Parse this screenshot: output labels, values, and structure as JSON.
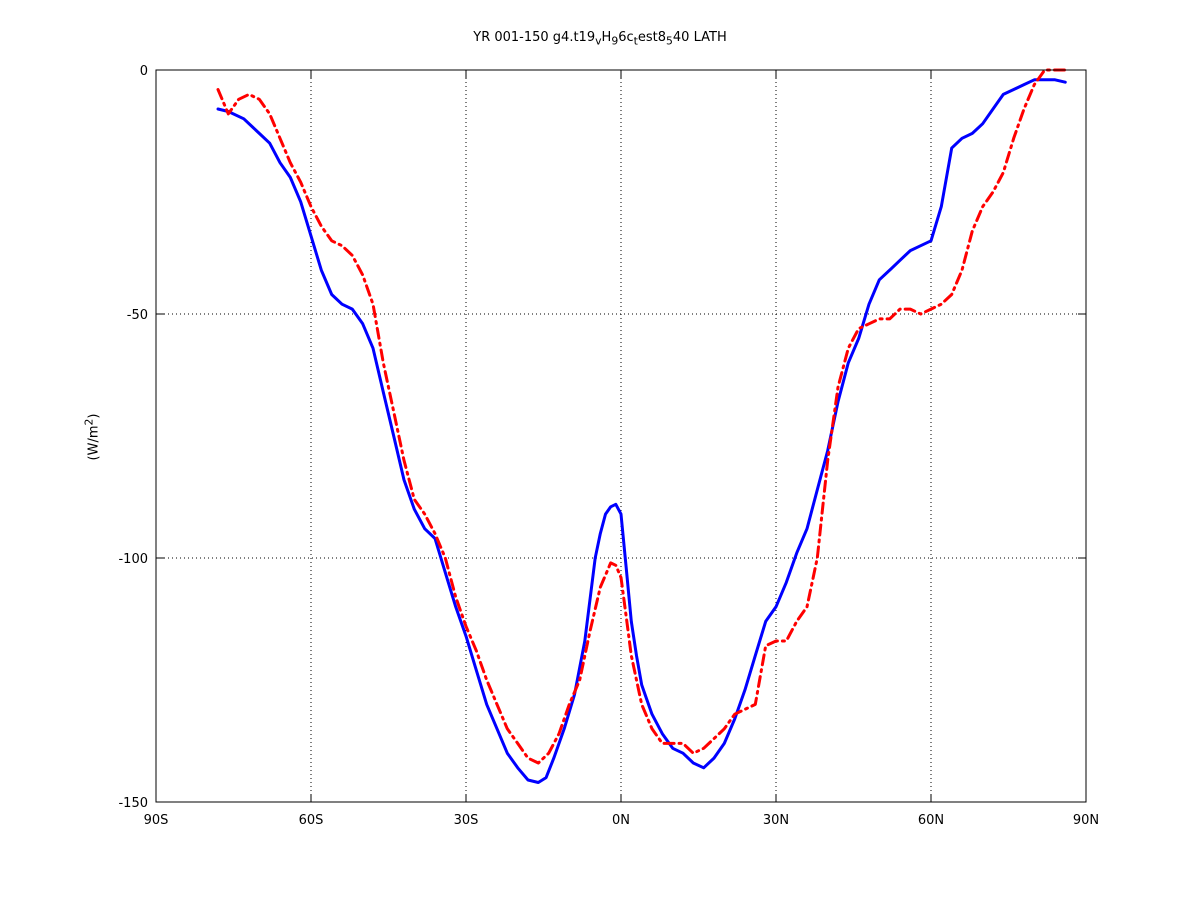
{
  "chart_data": {
    "type": "line",
    "title": {
      "t1": "YR 001-150 g4.t19",
      "s1": "v",
      "t2": "H",
      "s2": "9",
      "t3": "6c",
      "s3": "t",
      "t4": "est8",
      "s4": "5",
      "t5": "40 LATH"
    },
    "ylabel": {
      "main": "(W/m",
      "sup": "2",
      "close": ")"
    },
    "xlim": [
      -90,
      90
    ],
    "ylim": [
      -150,
      0
    ],
    "xticks": [
      -90,
      -60,
      -30,
      0,
      30,
      60,
      90
    ],
    "xtick_labels": [
      "90S",
      "60S",
      "30S",
      "0N",
      "30N",
      "60N",
      "90N"
    ],
    "yticks": [
      -150,
      -100,
      -50,
      0
    ],
    "ytick_labels": [
      "-150",
      "-100",
      "-50",
      "0"
    ],
    "grid": "dotted",
    "series": [
      {
        "color": "#0000ff",
        "style": "solid",
        "x": [
          -78,
          -76,
          -73,
          -70,
          -68,
          -66,
          -64,
          -62,
          -60,
          -58,
          -56,
          -54,
          -52,
          -50,
          -48,
          -46,
          -44,
          -42,
          -40,
          -38,
          -36,
          -34,
          -32,
          -30,
          -28,
          -26,
          -24,
          -22,
          -20,
          -18,
          -16,
          -14.5,
          -13,
          -11,
          -9,
          -7,
          -5,
          -4,
          -3,
          -2,
          -1,
          0,
          1,
          2,
          3,
          4,
          5,
          6,
          8,
          10,
          12,
          14,
          16,
          18,
          20,
          22,
          24,
          26,
          28,
          30,
          32,
          34,
          36,
          38,
          40,
          42,
          44,
          46,
          48,
          50,
          52,
          54,
          56,
          58,
          60,
          62,
          64,
          66,
          68,
          70,
          72,
          74,
          76,
          78,
          80,
          82,
          84,
          86
        ],
        "y": [
          -8,
          -8.5,
          -10,
          -13,
          -15,
          -19,
          -22,
          -27,
          -34,
          -41,
          -46,
          -48,
          -49,
          -52,
          -57,
          -66,
          -75,
          -84,
          -90,
          -94,
          -96,
          -103,
          -110,
          -116,
          -123,
          -130,
          -135,
          -140,
          -143,
          -145.5,
          -146,
          -145,
          -141,
          -135,
          -128,
          -117,
          -100,
          -95,
          -91,
          -89.5,
          -89,
          -91,
          -102,
          -113,
          -120,
          -126,
          -129,
          -132,
          -136,
          -139,
          -140,
          -142,
          -143,
          -141,
          -138,
          -133,
          -127,
          -120,
          -113,
          -110,
          -105,
          -99,
          -94,
          -86,
          -78,
          -68,
          -60,
          -55,
          -48,
          -43,
          -41,
          -39,
          -37,
          -36,
          -35,
          -28,
          -16,
          -14,
          -13,
          -11,
          -8,
          -5,
          -4,
          -3,
          -2,
          -2,
          -2,
          -2.5
        ]
      },
      {
        "color": "#ff0000",
        "style": "dashdot",
        "x": [
          -78,
          -76,
          -74,
          -72,
          -70,
          -68,
          -66,
          -64,
          -62,
          -60,
          -58,
          -56,
          -54,
          -52,
          -50,
          -48,
          -46,
          -44,
          -42,
          -40,
          -38,
          -36,
          -34,
          -32,
          -30,
          -28,
          -26,
          -24,
          -22,
          -20,
          -18,
          -16,
          -14,
          -12,
          -10,
          -8,
          -6,
          -4,
          -2,
          -1,
          0,
          1,
          2,
          4,
          6,
          8,
          10,
          12,
          14,
          16,
          18,
          20,
          22,
          24,
          26,
          28,
          30,
          32,
          34,
          36,
          38,
          40,
          42,
          44,
          46,
          48,
          50,
          52,
          54,
          56,
          58,
          60,
          62,
          64,
          66,
          68,
          70,
          72,
          74,
          76,
          78,
          80,
          82,
          84,
          86
        ],
        "y": [
          -4,
          -9,
          -6,
          -5,
          -6,
          -9,
          -14,
          -19,
          -23,
          -28,
          -32,
          -35,
          -36,
          -38,
          -42,
          -48,
          -60,
          -70,
          -80,
          -88,
          -91,
          -95,
          -100,
          -108,
          -114,
          -119,
          -125,
          -130,
          -135,
          -138,
          -141,
          -142,
          -140,
          -136,
          -130,
          -125,
          -115,
          -106,
          -101,
          -101.5,
          -104,
          -112,
          -120,
          -130,
          -135,
          -138,
          -138,
          -138,
          -140,
          -139,
          -137,
          -135,
          -132,
          -131,
          -130,
          -118,
          -117,
          -117,
          -113,
          -110,
          -100,
          -80,
          -65,
          -57,
          -53,
          -52,
          -51,
          -51,
          -49,
          -49,
          -50,
          -49,
          -48,
          -46,
          -41,
          -33,
          -28,
          -25,
          -21,
          -14,
          -8,
          -3,
          0,
          0,
          0
        ]
      }
    ]
  }
}
